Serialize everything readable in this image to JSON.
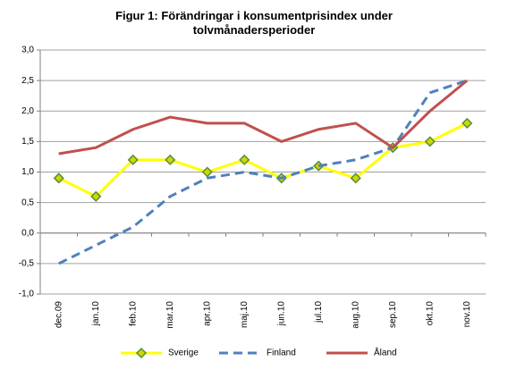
{
  "chart_data": {
    "type": "line",
    "title": "Figur 1: Förändringar i konsumentprisindex  under tolvmånadersperioder",
    "categories": [
      "dec.09",
      "jan.10",
      "feb.10",
      "mar.10",
      "apr.10",
      "maj.10",
      "jun.10",
      "jul.10",
      "aug.10",
      "sep.10",
      "okt.10",
      "nov.10"
    ],
    "series": [
      {
        "name": "Sverige",
        "color": "#ffff00",
        "values": [
          0.9,
          0.6,
          1.2,
          1.2,
          1.0,
          1.2,
          0.9,
          1.1,
          0.9,
          1.4,
          1.5,
          1.8
        ]
      },
      {
        "name": "Finland",
        "color": "#4f81bd",
        "values": [
          -0.5,
          -0.2,
          0.1,
          0.6,
          0.9,
          1.0,
          0.9,
          1.1,
          1.2,
          1.4,
          2.3,
          2.5
        ]
      },
      {
        "name": "Åland",
        "color": "#c0504d",
        "values": [
          1.3,
          1.4,
          1.7,
          1.9,
          1.8,
          1.8,
          1.5,
          1.7,
          1.8,
          1.4,
          2.0,
          2.5
        ]
      }
    ],
    "ylim": [
      -1,
      3
    ],
    "yticks": [
      {
        "value": -1,
        "label": "-1,0"
      },
      {
        "value": -0.5,
        "label": "-0,5"
      },
      {
        "value": 0,
        "label": "0,0"
      },
      {
        "value": 0.5,
        "label": "0,5"
      },
      {
        "value": 1,
        "label": "1,0"
      },
      {
        "value": 1.5,
        "label": "1,5"
      },
      {
        "value": 2,
        "label": "2,0"
      },
      {
        "value": 2.5,
        "label": "2,5"
      },
      {
        "value": 3,
        "label": "3,0"
      }
    ],
    "grid": true,
    "legend": "bottom"
  }
}
